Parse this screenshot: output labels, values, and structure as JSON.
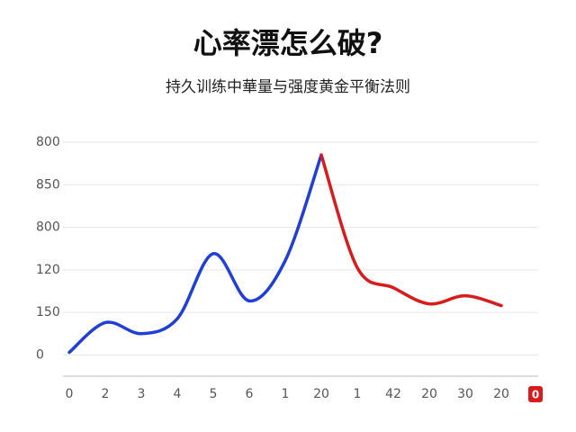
{
  "chart_data": {
    "type": "line",
    "title": "心率漂怎么破?",
    "subtitle": "持久训练中華量与强度黄金平衡法则",
    "categories": [
      "0",
      "2",
      "3",
      "4",
      "5",
      "6",
      "1",
      "20",
      "1",
      "42",
      "20",
      "30",
      "20"
    ],
    "end_badge": "0",
    "series": [
      {
        "color": "#1f3fd6",
        "values": [
          0.06,
          0.76,
          0.5,
          0.85,
          2.38,
          1.27,
          2.22,
          4.7,
          null,
          null,
          null,
          null,
          null
        ]
      },
      {
        "color": "#d81b1b",
        "values": [
          null,
          null,
          null,
          null,
          null,
          null,
          null,
          4.7,
          2.05,
          1.58,
          1.2,
          1.39,
          1.16
        ]
      }
    ],
    "ylim": [
      -0.5,
      5
    ],
    "yticks": [
      {
        "value": 0,
        "label": "0"
      },
      {
        "value": 1,
        "label": "150"
      },
      {
        "value": 2,
        "label": "120"
      },
      {
        "value": 3,
        "label": "800"
      },
      {
        "value": 4,
        "label": "850"
      },
      {
        "value": 5,
        "label": "800"
      }
    ],
    "grid": true
  }
}
